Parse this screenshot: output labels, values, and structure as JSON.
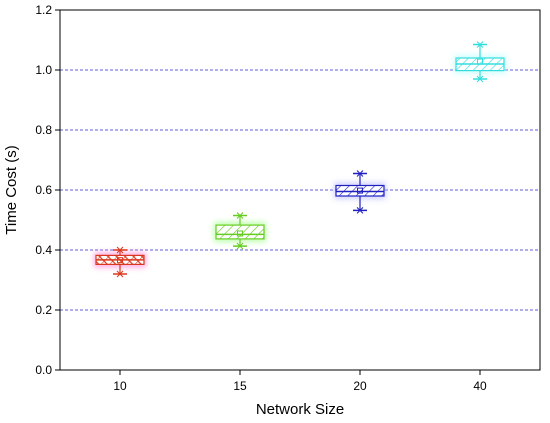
{
  "chart_data": {
    "type": "box",
    "xlabel": "Network Size",
    "ylabel": "Time Cost (s)",
    "categories": [
      "10",
      "15",
      "20",
      "40"
    ],
    "ylim": [
      0,
      1.2
    ],
    "yticks": [
      "0.0",
      "0.2",
      "0.4",
      "0.6",
      "0.8",
      "1.0",
      "1.2"
    ],
    "grid": "horizontal dashed at 0.2 intervals",
    "boxes": [
      {
        "category": "10",
        "min": 0.32,
        "q1": 0.352,
        "median": 0.367,
        "mean": 0.366,
        "q3": 0.382,
        "max": 0.4,
        "color": "#d9381e",
        "glow": "#ff66cc"
      },
      {
        "category": "15",
        "min": 0.413,
        "q1": 0.437,
        "median": 0.452,
        "mean": 0.455,
        "q3": 0.483,
        "max": 0.515,
        "color": "#66cc22",
        "glow": "#88ff66"
      },
      {
        "category": "20",
        "min": 0.532,
        "q1": 0.58,
        "median": 0.595,
        "mean": 0.598,
        "q3": 0.615,
        "max": 0.655,
        "color": "#2020c0",
        "glow": "#aaaaff"
      },
      {
        "category": "40",
        "min": 0.97,
        "q1": 0.998,
        "median": 1.02,
        "mean": 1.028,
        "q3": 1.04,
        "max": 1.085,
        "color": "#33dddd",
        "glow": "#aaffff"
      }
    ]
  }
}
